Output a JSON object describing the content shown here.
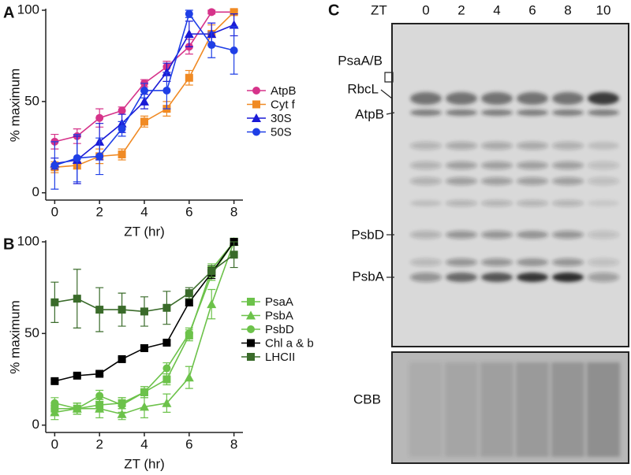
{
  "chart_data": [
    {
      "type": "line",
      "panel": "A",
      "xlabel": "ZT (hr)",
      "ylabel": "% maximum",
      "x": [
        0,
        1,
        2,
        3,
        4,
        5,
        6,
        7,
        8
      ],
      "xlim": [
        -0.4,
        8.4
      ],
      "xticks": [
        0,
        2,
        4,
        6,
        8
      ],
      "ylim": [
        -4,
        100
      ],
      "yticks": [
        0,
        50,
        100
      ],
      "series": [
        {
          "name": "AtpB",
          "color": "#d6338a",
          "marker": "circle",
          "values": [
            28,
            31,
            41,
            45,
            60,
            69,
            80,
            99,
            99
          ],
          "errors": [
            4,
            4,
            5,
            2,
            2,
            3,
            4,
            1,
            1
          ]
        },
        {
          "name": "Cyt f",
          "color": "#f08a24",
          "marker": "square",
          "values": [
            14,
            15,
            20,
            21,
            39,
            46,
            63,
            87,
            99
          ],
          "errors": [
            3,
            2,
            4,
            3,
            3,
            4,
            4,
            5,
            1
          ]
        },
        {
          "name": "30S",
          "color": "#1a1ad6",
          "marker": "triangle",
          "values": [
            16,
            18,
            28,
            38,
            50,
            66,
            87,
            87,
            92
          ],
          "errors": [
            3,
            13,
            10,
            5,
            4,
            5,
            7,
            6,
            6
          ]
        },
        {
          "name": "50S",
          "color": "#1f3fe6",
          "marker": "circle",
          "values": [
            15,
            19,
            20,
            35,
            56,
            56,
            98,
            81,
            78
          ],
          "errors": [
            13,
            13,
            10,
            4,
            4,
            10,
            2,
            7,
            13
          ]
        }
      ]
    },
    {
      "type": "line",
      "panel": "B",
      "xlabel": "ZT (hr)",
      "ylabel": "% maximum",
      "x": [
        0,
        1,
        2,
        3,
        4,
        5,
        6,
        7,
        8
      ],
      "xlim": [
        -0.4,
        8.4
      ],
      "xticks": [
        0,
        2,
        4,
        6,
        8
      ],
      "ylim": [
        -4,
        100
      ],
      "yticks": [
        0,
        50,
        100
      ],
      "series": [
        {
          "name": "PsaA",
          "color": "#6cc24a",
          "marker": "square",
          "values": [
            9,
            9,
            11,
            12,
            18,
            25,
            49,
            85,
            100
          ],
          "errors": [
            3,
            3,
            3,
            3,
            3,
            3,
            3,
            3,
            0
          ]
        },
        {
          "name": "PsbA",
          "color": "#6cc24a",
          "marker": "triangle",
          "values": [
            7,
            9,
            9,
            6,
            10,
            12,
            26,
            66,
            100
          ],
          "errors": [
            4,
            3,
            5,
            3,
            6,
            5,
            6,
            8,
            2
          ]
        },
        {
          "name": "PsbD",
          "color": "#6cc24a",
          "marker": "circle",
          "values": [
            12,
            9,
            16,
            11,
            18,
            31,
            50,
            82,
            100
          ],
          "errors": [
            3,
            3,
            3,
            4,
            3,
            3,
            3,
            3,
            0
          ]
        },
        {
          "name": "Chl a & b",
          "color": "#000000",
          "marker": "square",
          "values": [
            24,
            27,
            28,
            36,
            42,
            45,
            67,
            83,
            100
          ],
          "errors": [
            1,
            1,
            1,
            1,
            1,
            1,
            2,
            3,
            1
          ]
        },
        {
          "name": "LHCII",
          "color": "#3a6b2a",
          "marker": "square",
          "values": [
            67,
            69,
            63,
            63,
            62,
            64,
            72,
            84,
            93
          ],
          "errors": [
            11,
            16,
            12,
            9,
            8,
            9,
            3,
            3,
            7
          ]
        }
      ]
    }
  ],
  "gel": {
    "panel": "C",
    "lane_title": "ZT",
    "lanes": [
      "0",
      "2",
      "4",
      "6",
      "8",
      "10"
    ],
    "bands": [
      "PsaA/B",
      "RbcL",
      "AtpB",
      "PsbD",
      "PsbA"
    ],
    "stain": "CBB"
  }
}
